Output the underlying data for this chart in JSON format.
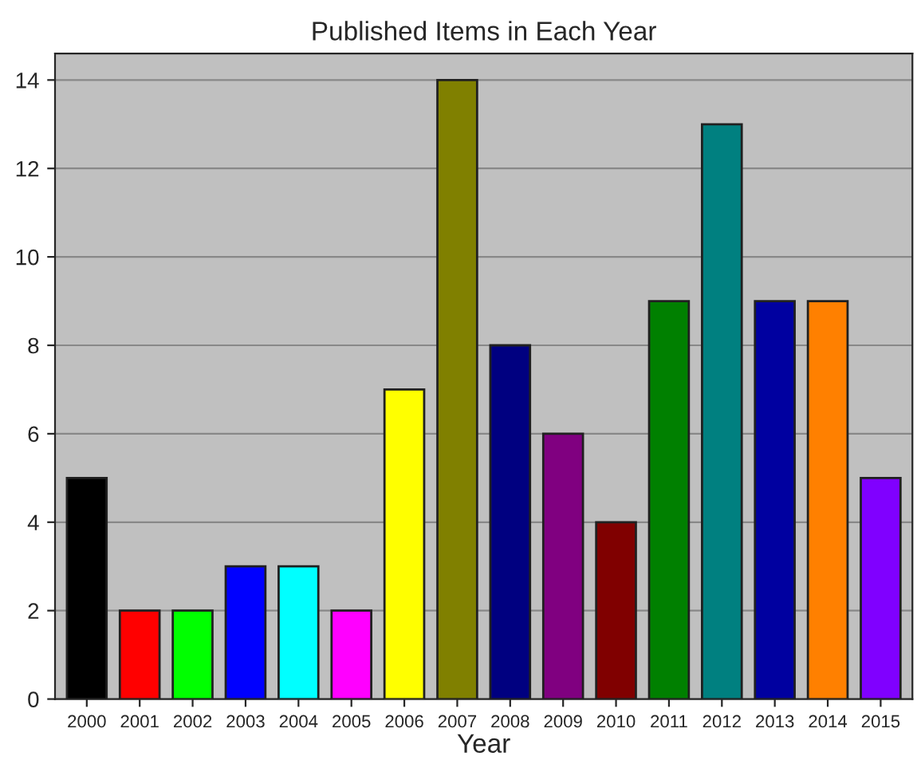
{
  "chart_data": {
    "type": "bar",
    "title": "Published Items in Each Year",
    "xlabel": "Year",
    "categories": [
      "2000",
      "2001",
      "2002",
      "2003",
      "2004",
      "2005",
      "2006",
      "2007",
      "2008",
      "2009",
      "2010",
      "2011",
      "2012",
      "2013",
      "2014",
      "2015"
    ],
    "values": [
      5,
      2,
      2,
      3,
      3,
      2,
      7,
      14,
      8,
      6,
      4,
      9,
      13,
      9,
      9,
      5
    ],
    "colors": [
      "#000000",
      "#ff0000",
      "#00ff00",
      "#0000ff",
      "#00ffff",
      "#ff00ff",
      "#ffff00",
      "#808000",
      "#000080",
      "#800080",
      "#800000",
      "#008000",
      "#008080",
      "#0000a0",
      "#ff8000",
      "#8000ff"
    ],
    "ylim": [
      0,
      14.6
    ],
    "yticks": [
      0,
      2,
      4,
      6,
      8,
      10,
      12,
      14
    ],
    "grid": "y",
    "legend": false
  }
}
